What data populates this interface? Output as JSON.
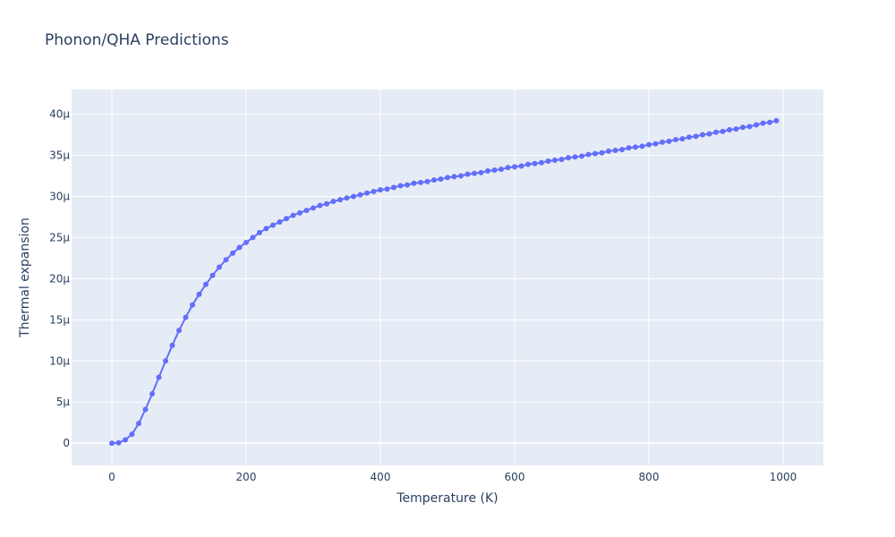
{
  "chart_data": {
    "type": "line",
    "title": "Phonon/QHA Predictions",
    "xlabel": "Temperature (K)",
    "ylabel": "Thermal expansion",
    "xlim": [
      -60,
      1060
    ],
    "ylim": [
      -2.7e-06,
      4.3e-05
    ],
    "x_ticks": [
      0,
      200,
      400,
      600,
      800,
      1000
    ],
    "x_tick_labels": [
      "0",
      "200",
      "400",
      "600",
      "800",
      "1000"
    ],
    "y_ticks": [
      0,
      5e-06,
      1e-05,
      1.5e-05,
      2e-05,
      2.5e-05,
      3e-05,
      3.5e-05,
      4e-05
    ],
    "y_tick_labels": [
      "0",
      "5μ",
      "10μ",
      "15μ",
      "20μ",
      "25μ",
      "30μ",
      "35μ",
      "40μ"
    ],
    "grid": true,
    "colors": {
      "plot_bg": "#e5ecf6",
      "grid": "#ffffff",
      "series": "#636efa"
    },
    "series": [
      {
        "x": [
          0,
          10,
          20,
          30,
          40,
          50,
          60,
          70,
          80,
          90,
          100,
          110,
          120,
          130,
          140,
          150,
          160,
          170,
          180,
          190,
          200,
          210,
          220,
          230,
          240,
          250,
          260,
          270,
          280,
          290,
          300,
          310,
          320,
          330,
          340,
          350,
          360,
          370,
          380,
          390,
          400,
          410,
          420,
          430,
          440,
          450,
          460,
          470,
          480,
          490,
          500,
          510,
          520,
          530,
          540,
          550,
          560,
          570,
          580,
          590,
          600,
          610,
          620,
          630,
          640,
          650,
          660,
          670,
          680,
          690,
          700,
          710,
          720,
          730,
          740,
          750,
          760,
          770,
          780,
          790,
          800,
          810,
          820,
          830,
          840,
          850,
          860,
          870,
          880,
          890,
          900,
          910,
          920,
          930,
          940,
          950,
          960,
          970,
          980,
          990
        ],
        "y": [
          0,
          5e-08,
          4e-07,
          1.1e-06,
          2.4e-06,
          4.1e-06,
          6e-06,
          8e-06,
          1e-05,
          1.19e-05,
          1.37e-05,
          1.53e-05,
          1.68e-05,
          1.81e-05,
          1.93e-05,
          2.04e-05,
          2.14e-05,
          2.23e-05,
          2.31e-05,
          2.38e-05,
          2.44e-05,
          2.5e-05,
          2.56e-05,
          2.61e-05,
          2.65e-05,
          2.69e-05,
          2.73e-05,
          2.77e-05,
          2.8e-05,
          2.83e-05,
          2.86e-05,
          2.89e-05,
          2.91e-05,
          2.94e-05,
          2.96e-05,
          2.98e-05,
          3e-05,
          3.02e-05,
          3.04e-05,
          3.06e-05,
          3.08e-05,
          3.09e-05,
          3.11e-05,
          3.13e-05,
          3.14e-05,
          3.16e-05,
          3.17e-05,
          3.18e-05,
          3.2e-05,
          3.21e-05,
          3.23e-05,
          3.24e-05,
          3.25e-05,
          3.27e-05,
          3.28e-05,
          3.29e-05,
          3.31e-05,
          3.32e-05,
          3.33e-05,
          3.35e-05,
          3.36e-05,
          3.37e-05,
          3.39e-05,
          3.4e-05,
          3.41e-05,
          3.43e-05,
          3.44e-05,
          3.45e-05,
          3.47e-05,
          3.48e-05,
          3.49e-05,
          3.51e-05,
          3.52e-05,
          3.53e-05,
          3.55e-05,
          3.56e-05,
          3.57e-05,
          3.59e-05,
          3.6e-05,
          3.61e-05,
          3.63e-05,
          3.64e-05,
          3.66e-05,
          3.67e-05,
          3.69e-05,
          3.7e-05,
          3.72e-05,
          3.73e-05,
          3.75e-05,
          3.76e-05,
          3.78e-05,
          3.79e-05,
          3.81e-05,
          3.82e-05,
          3.84e-05,
          3.85e-05,
          3.87e-05,
          3.89e-05,
          3.9e-05,
          3.92e-05
        ]
      }
    ]
  }
}
